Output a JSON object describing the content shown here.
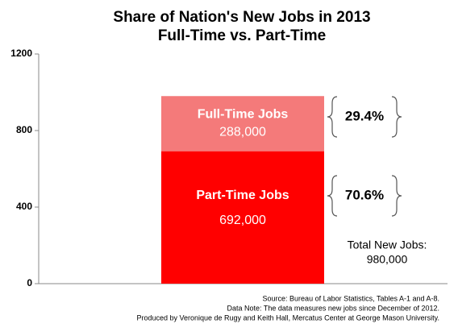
{
  "chart_data": {
    "type": "stacked_bar",
    "title": "Share of Nation's New Jobs in 2013",
    "subtitle": "Full-Time vs. Part-Time",
    "categories": [
      null
    ],
    "series": [
      {
        "name": "Part-Time Jobs",
        "color": "#ff0000",
        "values": [
          692
        ],
        "value_labels": [
          "692,000"
        ]
      },
      {
        "name": "Full-Time Jobs",
        "color": "#f47a7a",
        "values": [
          288
        ],
        "value_labels": [
          "288,000"
        ]
      }
    ],
    "ylim": [
      0,
      1200
    ],
    "yticks": [
      0,
      400,
      800,
      1200
    ],
    "grid": false,
    "annotations": [
      "70.6%",
      "29.4%",
      "Total New Jobs:",
      "980,000"
    ],
    "source": [
      "Source: Bureau of Labor Statistics, Tables A-1 and A-8.",
      "Data Note: The data measures new jobs since December of 2012.",
      "Produced by Veronique de Rugy and Keith Hall, Mercatus Center at George Mason University."
    ]
  }
}
